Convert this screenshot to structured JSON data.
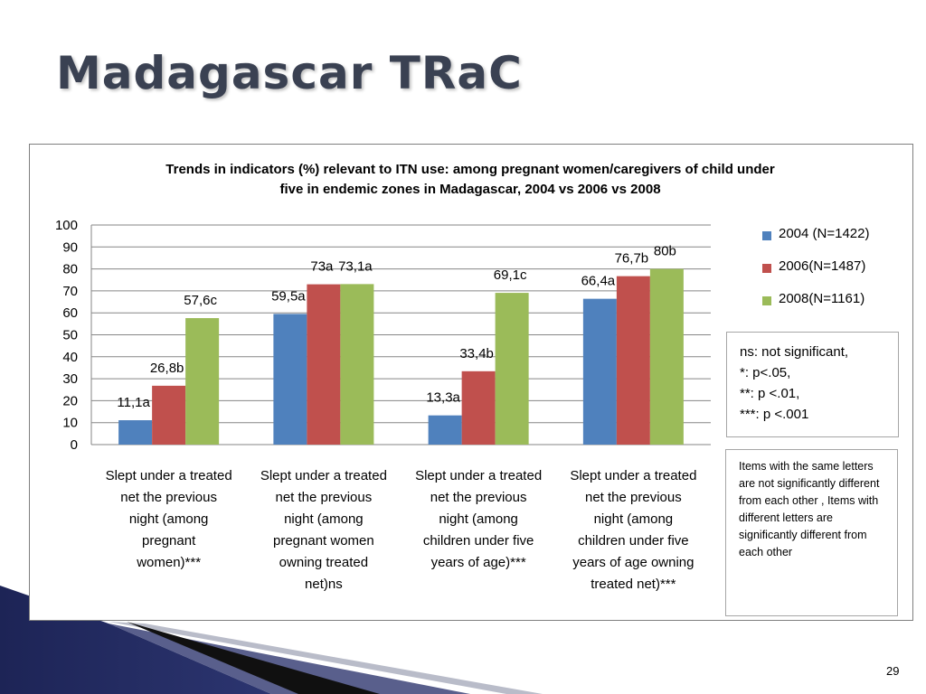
{
  "slide": {
    "title": "Madagascar TRaC",
    "page_number": "29"
  },
  "notes": {
    "significance": [
      "ns: not significant,",
      "*: p<.05,",
      "**: p <.01,",
      "***: p <.001"
    ],
    "letters": [
      "Items with the same letters are not significantly different from each other , Items with different letters are significantly different from each other"
    ]
  },
  "colors": {
    "series_2004": "#4f81bd",
    "series_2006": "#c0504d",
    "series_2008": "#9bbb59",
    "title": "#3a4152"
  },
  "chart_data": {
    "type": "bar",
    "title": [
      "Trends in indicators (%) relevant to ITN use: among pregnant women/caregivers of child under",
      "five in endemic zones in Madagascar,  2004 vs 2006 vs 2008"
    ],
    "xlabel": "",
    "ylabel": "",
    "ylim": [
      0,
      100
    ],
    "yticks": [
      0,
      10,
      20,
      30,
      40,
      50,
      60,
      70,
      80,
      90,
      100
    ],
    "grid": true,
    "legend_position": "right",
    "categories": [
      [
        "Slept under a treated",
        "net the previous",
        "night (among",
        "pregnant",
        "women)***"
      ],
      [
        "Slept under a treated",
        "net the previous",
        "night (among",
        "pregnant women",
        "owning treated",
        "net)ns"
      ],
      [
        "Slept under a treated",
        "net the previous",
        "night (among",
        "children under five",
        "years of age)***"
      ],
      [
        "Slept under a treated",
        "net the previous",
        "night (among",
        "children under five",
        "years of age owning",
        "treated net)***"
      ]
    ],
    "series": [
      {
        "name": "2004 (N=1422)",
        "values": [
          11.1,
          59.5,
          13.3,
          66.4
        ],
        "labels": [
          "11,1a",
          "59,5a",
          "13,3a",
          "66,4a"
        ]
      },
      {
        "name": "2006(N=1487)",
        "values": [
          26.8,
          73,
          33.4,
          76.7
        ],
        "labels": [
          "26,8b",
          "73a",
          "33,4b",
          "76,7b"
        ]
      },
      {
        "name": "2008(N=1161)",
        "values": [
          57.6,
          73.1,
          69.1,
          80
        ],
        "labels": [
          "57,6c",
          "73,1a",
          "69,1c",
          "80b"
        ]
      }
    ]
  }
}
